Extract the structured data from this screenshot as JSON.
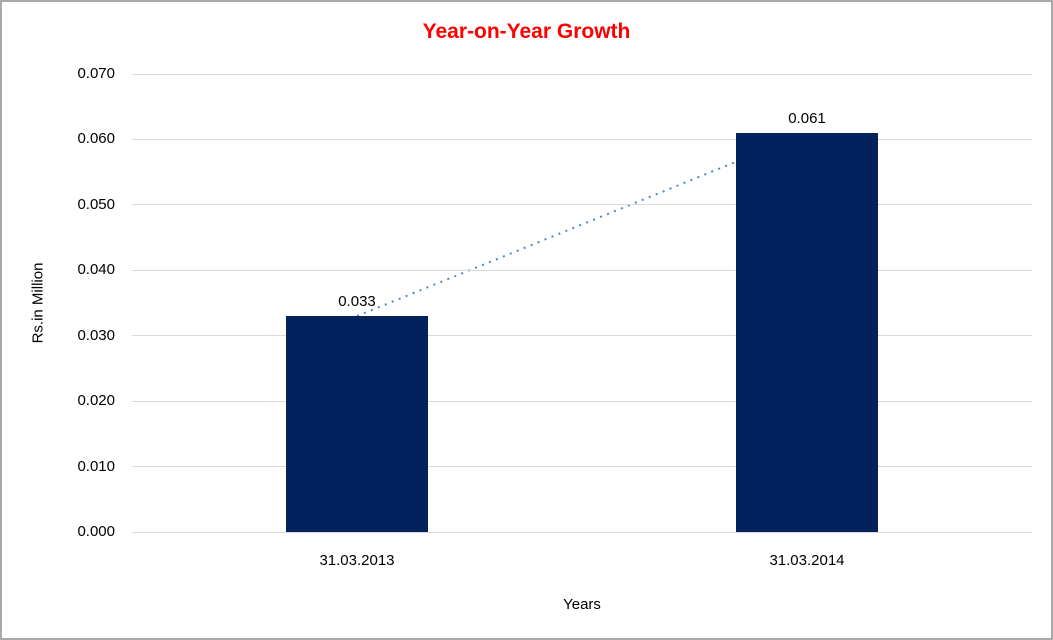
{
  "chart_data": {
    "type": "bar",
    "title": "Year-on-Year Growth",
    "xlabel": "Years",
    "ylabel": "Rs.in Million",
    "categories": [
      "31.03.2013",
      "31.03.2014"
    ],
    "values": [
      0.033,
      0.061
    ],
    "data_labels": [
      "0.033",
      "0.061"
    ],
    "ylim": [
      0,
      0.07
    ],
    "ytick_step": 0.01,
    "ytick_labels": [
      "0.000",
      "0.010",
      "0.020",
      "0.030",
      "0.040",
      "0.050",
      "0.060",
      "0.070"
    ],
    "grid": "horizontal-only",
    "legend": "none",
    "trendline": {
      "style": "dotted",
      "connects": "bar-tops",
      "color": "#4e87c5"
    },
    "colors": {
      "bar": "#03215c",
      "title": "#ff0000",
      "gridline": "#d9d9d9",
      "text": "#000000",
      "border": "#a9a9a9",
      "background": "#ffffff"
    }
  }
}
